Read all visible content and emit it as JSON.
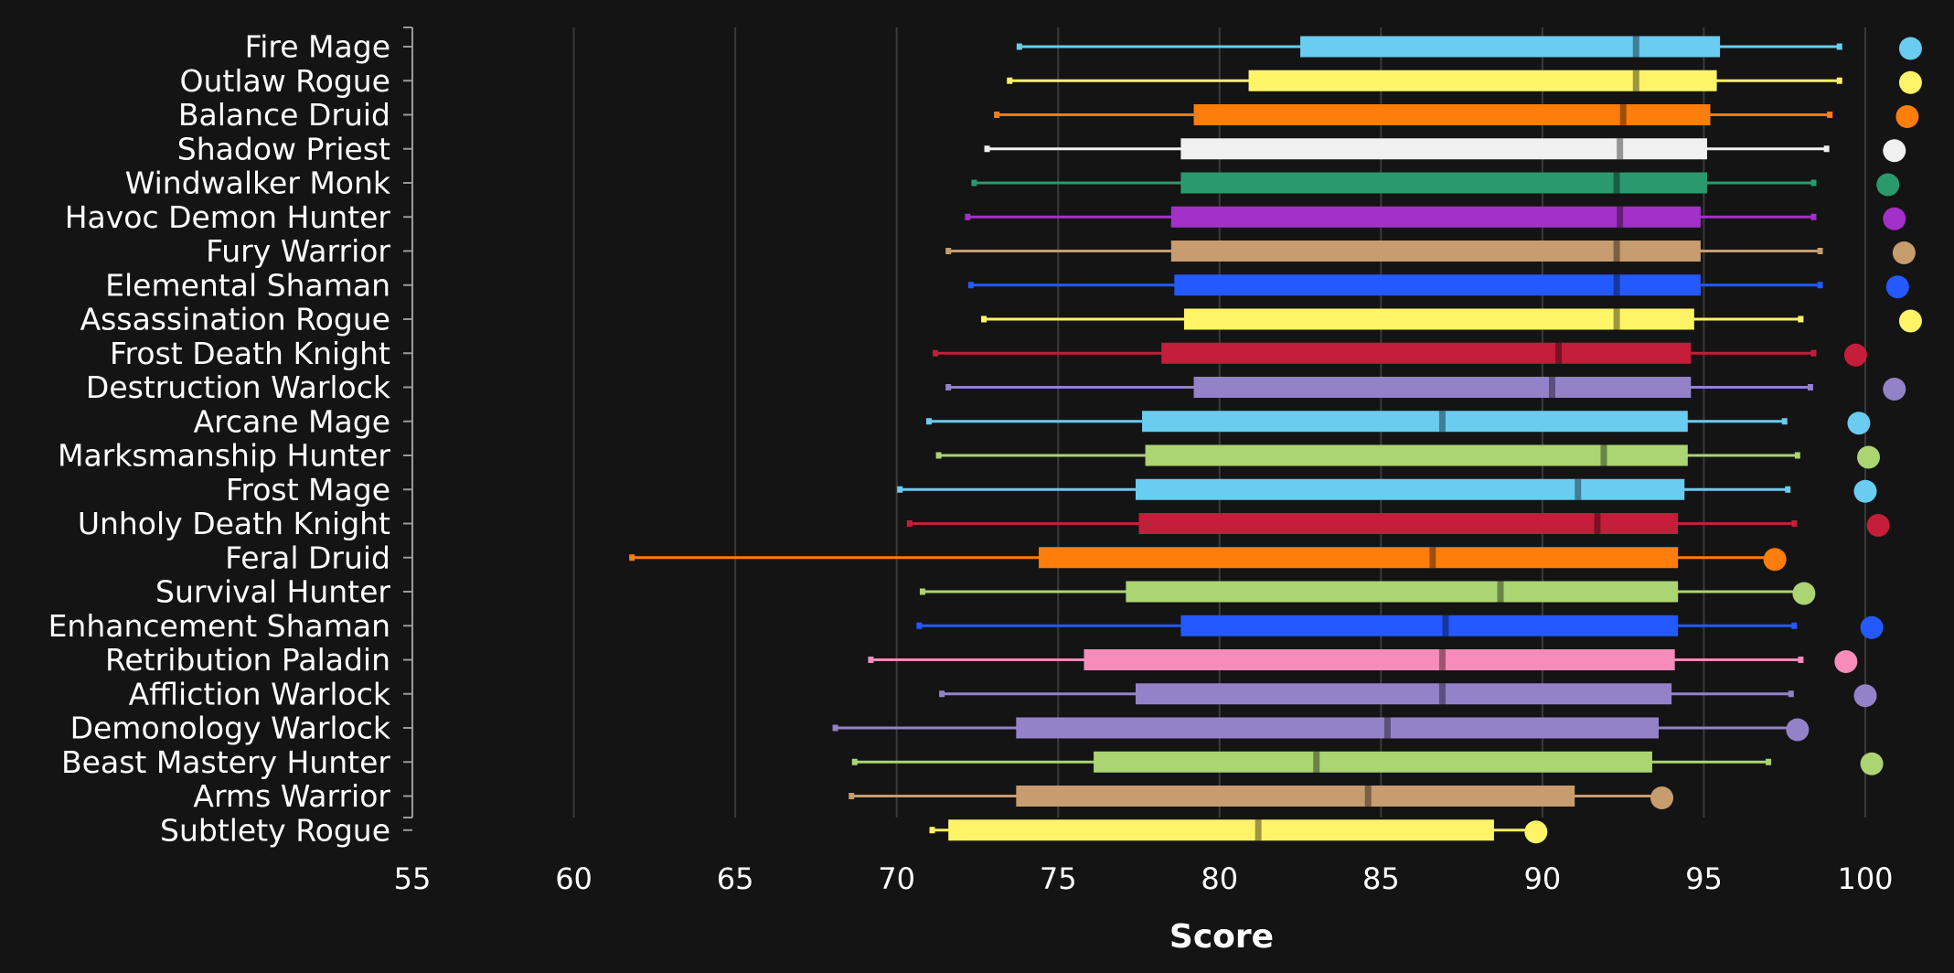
{
  "chart_data": {
    "type": "box",
    "orientation": "horizontal",
    "xlabel": "Score",
    "xlim": [
      55,
      102
    ],
    "x_ticks": [
      55,
      60,
      65,
      70,
      75,
      80,
      85,
      90,
      95,
      100
    ],
    "grid": "vertical",
    "colors": {
      "background": "#141414",
      "grid": "#3a3a3a",
      "axis": "#9a9a9a",
      "text": "#ffffff"
    },
    "series": [
      {
        "name": "Fire Mage",
        "color": "#69ccf0",
        "min": 73.8,
        "q1": 82.5,
        "median": 92.9,
        "q3": 95.5,
        "max": 99.2,
        "top": 101.4
      },
      {
        "name": "Outlaw Rogue",
        "color": "#fff468",
        "min": 73.5,
        "q1": 80.9,
        "median": 92.9,
        "q3": 95.4,
        "max": 99.2,
        "top": 101.4
      },
      {
        "name": "Balance Druid",
        "color": "#ff7d0a",
        "min": 73.1,
        "q1": 79.2,
        "median": 92.5,
        "q3": 95.2,
        "max": 98.9,
        "top": 101.3
      },
      {
        "name": "Shadow Priest",
        "color": "#f0f0f0",
        "min": 72.8,
        "q1": 78.8,
        "median": 92.4,
        "q3": 95.1,
        "max": 98.8,
        "top": 100.9
      },
      {
        "name": "Windwalker Monk",
        "color": "#2a9a6e",
        "min": 72.4,
        "q1": 78.8,
        "median": 92.3,
        "q3": 95.1,
        "max": 98.4,
        "top": 100.7
      },
      {
        "name": "Havoc Demon Hunter",
        "color": "#a330c9",
        "min": 72.2,
        "q1": 78.5,
        "median": 92.4,
        "q3": 94.9,
        "max": 98.4,
        "top": 100.9
      },
      {
        "name": "Fury Warrior",
        "color": "#c79c6e",
        "min": 71.6,
        "q1": 78.5,
        "median": 92.3,
        "q3": 94.9,
        "max": 98.6,
        "top": 101.2
      },
      {
        "name": "Elemental Shaman",
        "color": "#2459ff",
        "min": 72.3,
        "q1": 78.6,
        "median": 92.3,
        "q3": 94.9,
        "max": 98.6,
        "top": 101.0
      },
      {
        "name": "Assassination Rogue",
        "color": "#fff468",
        "min": 72.7,
        "q1": 78.9,
        "median": 92.3,
        "q3": 94.7,
        "max": 98.0,
        "top": 101.4
      },
      {
        "name": "Frost Death Knight",
        "color": "#c41e3a",
        "min": 71.2,
        "q1": 78.2,
        "median": 90.5,
        "q3": 94.6,
        "max": 98.4,
        "top": 99.7
      },
      {
        "name": "Destruction Warlock",
        "color": "#9482c9",
        "min": 71.6,
        "q1": 79.2,
        "median": 90.3,
        "q3": 94.6,
        "max": 98.3,
        "top": 100.9
      },
      {
        "name": "Arcane Mage",
        "color": "#69ccf0",
        "min": 71.0,
        "q1": 77.6,
        "median": 86.9,
        "q3": 94.5,
        "max": 97.5,
        "top": 99.8
      },
      {
        "name": "Marksmanship Hunter",
        "color": "#abd473",
        "min": 71.3,
        "q1": 77.7,
        "median": 91.9,
        "q3": 94.5,
        "max": 97.9,
        "top": 100.1
      },
      {
        "name": "Frost Mage",
        "color": "#69ccf0",
        "min": 70.1,
        "q1": 77.4,
        "median": 91.1,
        "q3": 94.4,
        "max": 97.6,
        "top": 100.0
      },
      {
        "name": "Unholy Death Knight",
        "color": "#c41e3a",
        "min": 70.4,
        "q1": 77.5,
        "median": 91.7,
        "q3": 94.2,
        "max": 97.8,
        "top": 100.4
      },
      {
        "name": "Feral Druid",
        "color": "#ff7d0a",
        "min": 61.8,
        "q1": 74.4,
        "median": 86.6,
        "q3": 94.2,
        "max": 97.2,
        "top": 97.2
      },
      {
        "name": "Survival Hunter",
        "color": "#abd473",
        "min": 70.8,
        "q1": 77.1,
        "median": 88.7,
        "q3": 94.2,
        "max": 98.1,
        "top": 98.1
      },
      {
        "name": "Enhancement Shaman",
        "color": "#2459ff",
        "min": 70.7,
        "q1": 78.8,
        "median": 87.0,
        "q3": 94.2,
        "max": 97.8,
        "top": 100.2
      },
      {
        "name": "Retribution Paladin",
        "color": "#f58cba",
        "min": 69.2,
        "q1": 75.8,
        "median": 86.9,
        "q3": 94.1,
        "max": 98.0,
        "top": 99.4
      },
      {
        "name": "Affliction Warlock",
        "color": "#9482c9",
        "min": 71.4,
        "q1": 77.4,
        "median": 86.9,
        "q3": 94.0,
        "max": 97.7,
        "top": 100.0
      },
      {
        "name": "Demonology Warlock",
        "color": "#9482c9",
        "min": 68.1,
        "q1": 73.7,
        "median": 85.2,
        "q3": 93.6,
        "max": 97.9,
        "top": 97.9
      },
      {
        "name": "Beast Mastery Hunter",
        "color": "#abd473",
        "min": 68.7,
        "q1": 76.1,
        "median": 83.0,
        "q3": 93.4,
        "max": 97.0,
        "top": 100.2
      },
      {
        "name": "Arms Warrior",
        "color": "#c79c6e",
        "min": 68.6,
        "q1": 73.7,
        "median": 84.6,
        "q3": 91.0,
        "max": 93.7,
        "top": 93.7
      },
      {
        "name": "Subtlety Rogue",
        "color": "#fff468",
        "min": 71.1,
        "q1": 71.6,
        "median": 81.2,
        "q3": 88.5,
        "max": 89.8,
        "top": 89.8
      }
    ]
  }
}
